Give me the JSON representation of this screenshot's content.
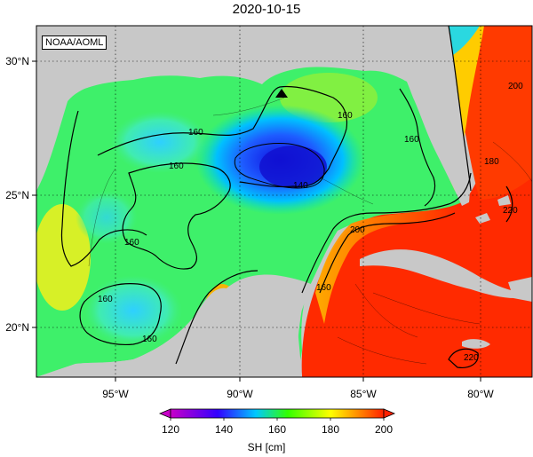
{
  "title": "2020-10-15",
  "credit": "NOAA/AOML",
  "lon_ticks": [
    "95°W",
    "90°W",
    "85°W",
    "80°W"
  ],
  "lat_ticks": [
    "30°N",
    "25°N",
    "20°N"
  ],
  "contour_labels": [
    "160",
    "160",
    "160",
    "160",
    "160",
    "160",
    "140",
    "160",
    "200",
    "200",
    "160",
    "180",
    "220",
    "220"
  ],
  "colorbar": {
    "ticks": [
      "120",
      "140",
      "160",
      "180",
      "200"
    ],
    "label": "SH [cm]",
    "colors": [
      "#c800c8",
      "#3200ff",
      "#00c8ff",
      "#32ff00",
      "#ffff00",
      "#ff3200"
    ]
  },
  "marker": "triangle"
}
